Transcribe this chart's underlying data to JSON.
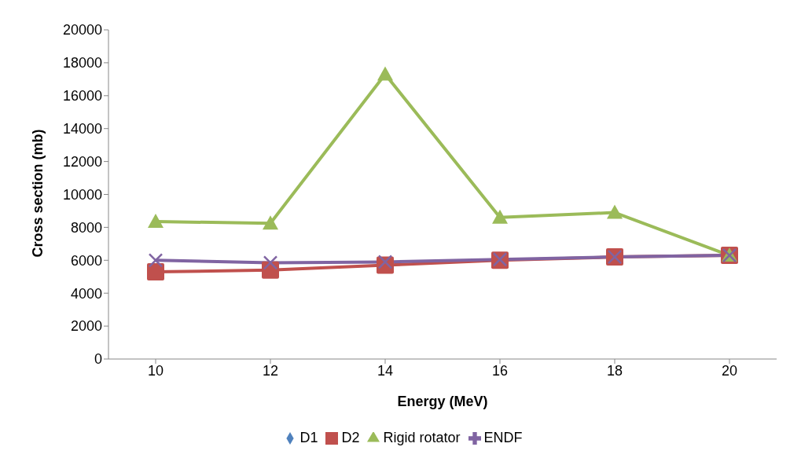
{
  "chart_data": {
    "type": "line",
    "xlabel": "Energy (MeV)",
    "ylabel": "Cross section (mb)",
    "categories": [
      "10",
      "12",
      "14",
      "16",
      "18",
      "20"
    ],
    "series": [
      {
        "name": "D1",
        "color": "#4f81bd",
        "marker": "diamond",
        "values": [
          null,
          null,
          null,
          null,
          null,
          null
        ]
      },
      {
        "name": "D2",
        "color": "#c0504d",
        "marker": "square",
        "values": [
          5300,
          5400,
          5700,
          6000,
          6200,
          6300
        ]
      },
      {
        "name": "Rigid rotator",
        "color": "#9bbb59",
        "marker": "triangle",
        "values": [
          8350,
          8250,
          17300,
          8600,
          8900,
          6300
        ]
      },
      {
        "name": "ENDF",
        "color": "#8064a2",
        "marker": "cross",
        "values": [
          6000,
          5850,
          5900,
          6050,
          6200,
          6300
        ]
      }
    ],
    "ylim": [
      0,
      20000
    ],
    "yticks": [
      0,
      2000,
      4000,
      6000,
      8000,
      10000,
      12000,
      14000,
      16000,
      18000,
      20000
    ],
    "grid": false,
    "legend": "bottom"
  }
}
